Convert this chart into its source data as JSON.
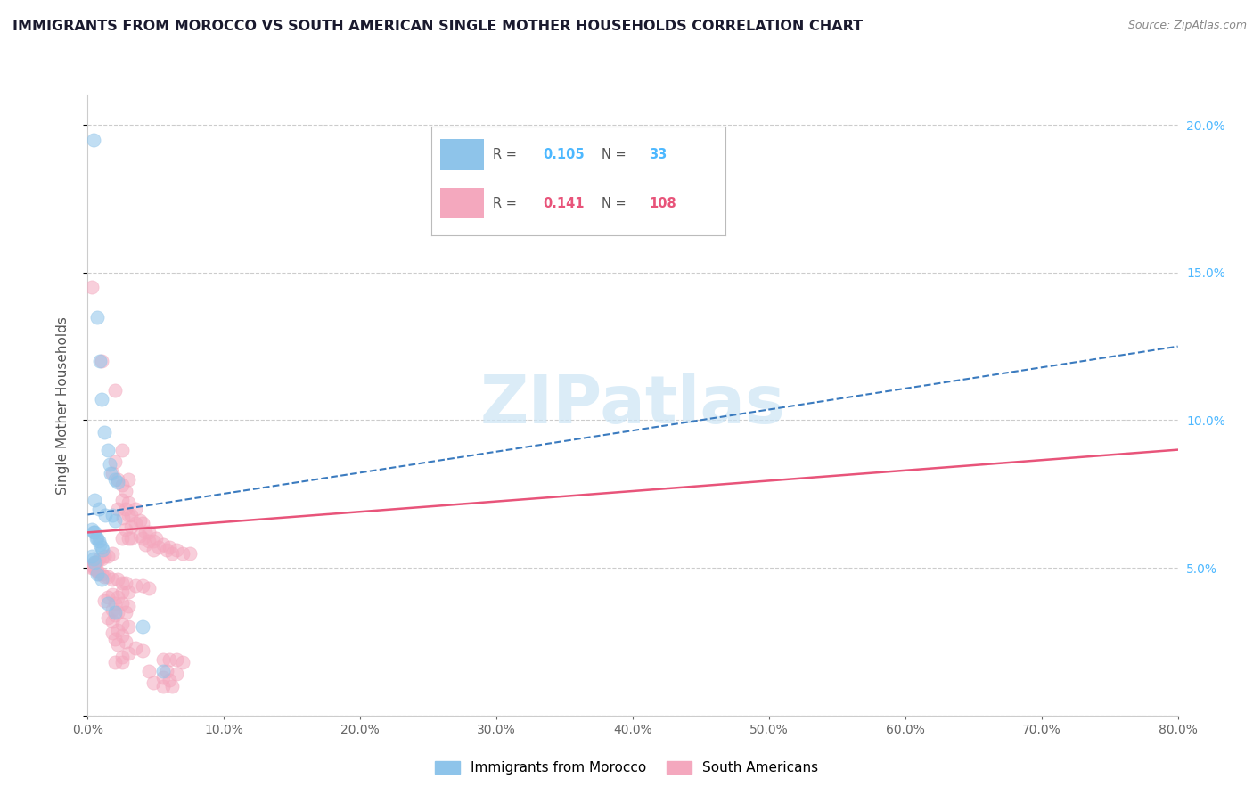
{
  "title": "IMMIGRANTS FROM MOROCCO VS SOUTH AMERICAN SINGLE MOTHER HOUSEHOLDS CORRELATION CHART",
  "source": "Source: ZipAtlas.com",
  "ylabel": "Single Mother Households",
  "xlim": [
    0.0,
    0.8
  ],
  "ylim": [
    0.0,
    0.21
  ],
  "xticks": [
    0.0,
    0.1,
    0.2,
    0.3,
    0.4,
    0.5,
    0.6,
    0.7,
    0.8
  ],
  "xticklabels": [
    "0.0%",
    "10.0%",
    "20.0%",
    "30.0%",
    "40.0%",
    "50.0%",
    "60.0%",
    "70.0%",
    "80.0%"
  ],
  "yticks": [
    0.0,
    0.05,
    0.1,
    0.15,
    0.2
  ],
  "yticklabels_right": [
    "",
    "5.0%",
    "10.0%",
    "15.0%",
    "20.0%"
  ],
  "watermark": "ZIPatlas",
  "morocco_R": 0.105,
  "morocco_N": 33,
  "southam_R": 0.141,
  "southam_N": 108,
  "morocco_color": "#8ec4ea",
  "southam_color": "#f4a8be",
  "morocco_line_color": "#3b7bbf",
  "southam_line_color": "#e8547a",
  "legend_label_1": "Immigrants from Morocco",
  "legend_label_2": "South Americans",
  "morocco_trendline": [
    [
      0.0,
      0.068
    ],
    [
      0.8,
      0.125
    ]
  ],
  "southam_trendline": [
    [
      0.0,
      0.062
    ],
    [
      0.8,
      0.09
    ]
  ],
  "morocco_scatter": [
    [
      0.004,
      0.195
    ],
    [
      0.007,
      0.135
    ],
    [
      0.009,
      0.12
    ],
    [
      0.01,
      0.107
    ],
    [
      0.012,
      0.096
    ],
    [
      0.015,
      0.09
    ],
    [
      0.016,
      0.085
    ],
    [
      0.017,
      0.082
    ],
    [
      0.02,
      0.08
    ],
    [
      0.022,
      0.079
    ],
    [
      0.005,
      0.073
    ],
    [
      0.008,
      0.07
    ],
    [
      0.013,
      0.068
    ],
    [
      0.018,
      0.068
    ],
    [
      0.02,
      0.066
    ],
    [
      0.003,
      0.063
    ],
    [
      0.004,
      0.062
    ],
    [
      0.005,
      0.062
    ],
    [
      0.006,
      0.06
    ],
    [
      0.007,
      0.06
    ],
    [
      0.008,
      0.059
    ],
    [
      0.009,
      0.058
    ],
    [
      0.01,
      0.057
    ],
    [
      0.011,
      0.056
    ],
    [
      0.003,
      0.054
    ],
    [
      0.004,
      0.053
    ],
    [
      0.005,
      0.052
    ],
    [
      0.007,
      0.048
    ],
    [
      0.01,
      0.046
    ],
    [
      0.015,
      0.038
    ],
    [
      0.02,
      0.035
    ],
    [
      0.04,
      0.03
    ],
    [
      0.055,
      0.015
    ]
  ],
  "southam_scatter": [
    [
      0.003,
      0.145
    ],
    [
      0.01,
      0.12
    ],
    [
      0.02,
      0.11
    ],
    [
      0.025,
      0.09
    ],
    [
      0.02,
      0.086
    ],
    [
      0.018,
      0.082
    ],
    [
      0.022,
      0.08
    ],
    [
      0.03,
      0.08
    ],
    [
      0.025,
      0.078
    ],
    [
      0.028,
      0.076
    ],
    [
      0.025,
      0.073
    ],
    [
      0.03,
      0.072
    ],
    [
      0.022,
      0.07
    ],
    [
      0.028,
      0.07
    ],
    [
      0.035,
      0.07
    ],
    [
      0.032,
      0.068
    ],
    [
      0.03,
      0.068
    ],
    [
      0.026,
      0.067
    ],
    [
      0.038,
      0.066
    ],
    [
      0.035,
      0.065
    ],
    [
      0.04,
      0.065
    ],
    [
      0.032,
      0.064
    ],
    [
      0.028,
      0.063
    ],
    [
      0.045,
      0.062
    ],
    [
      0.042,
      0.062
    ],
    [
      0.038,
      0.061
    ],
    [
      0.032,
      0.06
    ],
    [
      0.03,
      0.06
    ],
    [
      0.025,
      0.06
    ],
    [
      0.04,
      0.06
    ],
    [
      0.05,
      0.06
    ],
    [
      0.048,
      0.059
    ],
    [
      0.045,
      0.059
    ],
    [
      0.042,
      0.058
    ],
    [
      0.055,
      0.058
    ],
    [
      0.052,
      0.057
    ],
    [
      0.06,
      0.057
    ],
    [
      0.058,
      0.056
    ],
    [
      0.048,
      0.056
    ],
    [
      0.065,
      0.056
    ],
    [
      0.062,
      0.055
    ],
    [
      0.07,
      0.055
    ],
    [
      0.075,
      0.055
    ],
    [
      0.018,
      0.055
    ],
    [
      0.015,
      0.054
    ],
    [
      0.012,
      0.054
    ],
    [
      0.01,
      0.053
    ],
    [
      0.008,
      0.053
    ],
    [
      0.006,
      0.052
    ],
    [
      0.005,
      0.052
    ],
    [
      0.004,
      0.051
    ],
    [
      0.003,
      0.051
    ],
    [
      0.003,
      0.05
    ],
    [
      0.004,
      0.05
    ],
    [
      0.005,
      0.05
    ],
    [
      0.006,
      0.049
    ],
    [
      0.007,
      0.049
    ],
    [
      0.008,
      0.048
    ],
    [
      0.01,
      0.048
    ],
    [
      0.012,
      0.047
    ],
    [
      0.015,
      0.047
    ],
    [
      0.018,
      0.046
    ],
    [
      0.022,
      0.046
    ],
    [
      0.025,
      0.045
    ],
    [
      0.028,
      0.045
    ],
    [
      0.035,
      0.044
    ],
    [
      0.04,
      0.044
    ],
    [
      0.045,
      0.043
    ],
    [
      0.025,
      0.042
    ],
    [
      0.03,
      0.042
    ],
    [
      0.018,
      0.041
    ],
    [
      0.022,
      0.04
    ],
    [
      0.015,
      0.04
    ],
    [
      0.012,
      0.039
    ],
    [
      0.02,
      0.038
    ],
    [
      0.025,
      0.038
    ],
    [
      0.03,
      0.037
    ],
    [
      0.018,
      0.036
    ],
    [
      0.022,
      0.035
    ],
    [
      0.028,
      0.035
    ],
    [
      0.02,
      0.034
    ],
    [
      0.015,
      0.033
    ],
    [
      0.018,
      0.032
    ],
    [
      0.025,
      0.031
    ],
    [
      0.03,
      0.03
    ],
    [
      0.022,
      0.029
    ],
    [
      0.018,
      0.028
    ],
    [
      0.025,
      0.027
    ],
    [
      0.02,
      0.026
    ],
    [
      0.028,
      0.025
    ],
    [
      0.022,
      0.024
    ],
    [
      0.035,
      0.023
    ],
    [
      0.04,
      0.022
    ],
    [
      0.03,
      0.021
    ],
    [
      0.025,
      0.02
    ],
    [
      0.055,
      0.019
    ],
    [
      0.06,
      0.019
    ],
    [
      0.065,
      0.019
    ],
    [
      0.02,
      0.018
    ],
    [
      0.025,
      0.018
    ],
    [
      0.07,
      0.018
    ],
    [
      0.045,
      0.015
    ],
    [
      0.058,
      0.015
    ],
    [
      0.065,
      0.014
    ],
    [
      0.055,
      0.013
    ],
    [
      0.06,
      0.012
    ],
    [
      0.048,
      0.011
    ],
    [
      0.055,
      0.01
    ],
    [
      0.062,
      0.01
    ]
  ]
}
